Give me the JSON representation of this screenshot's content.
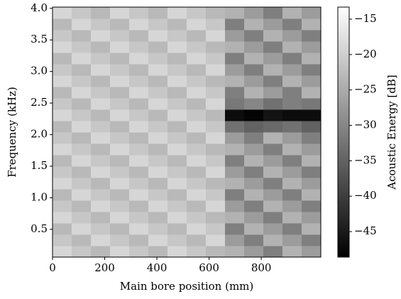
{
  "chart_data": {
    "type": "heatmap",
    "xlabel": "Main bore position (mm)",
    "ylabel": "Frequency (kHz)",
    "colorbar_label": "Acoustic Energy [dB]",
    "colormap": "gray",
    "xlim": [
      0,
      1028
    ],
    "ylim": [
      0.06,
      4.02
    ],
    "xticks": [
      0,
      200,
      400,
      600,
      800
    ],
    "yticks": [
      0.5,
      {
        "value": 1.0,
        "label": "1.0"
      },
      1.5,
      {
        "value": 2.0,
        "label": "2.0"
      },
      2.5,
      {
        "value": 3.0,
        "label": "3.0"
      },
      3.5,
      {
        "value": 4.0,
        "label": "4.0"
      }
    ],
    "clim": [
      -48.6,
      -13.3
    ],
    "cticks": [
      {
        "value": -15,
        "label": "−15"
      },
      {
        "value": -20,
        "label": "−20"
      },
      {
        "value": -25,
        "label": "−25"
      },
      {
        "value": -30,
        "label": "−30"
      },
      {
        "value": -35,
        "label": "−35"
      },
      {
        "value": -40,
        "label": "−40"
      },
      {
        "value": -45,
        "label": "−45"
      }
    ],
    "xbins": [
      0,
      73.4,
      146.9,
      220.3,
      293.7,
      367.1,
      440.6,
      514,
      587.4,
      660.9,
      734.3,
      807.7,
      881.1,
      954.6,
      1028
    ],
    "ybins": [
      0.06,
      0.24,
      0.42,
      0.6,
      0.78,
      0.96,
      1.14,
      1.32,
      1.5,
      1.68,
      1.86,
      2.04,
      2.22,
      2.4,
      2.58,
      2.76,
      2.94,
      3.12,
      3.3,
      3.48,
      3.66,
      3.84,
      4.02
    ],
    "z": [
      [
        -19,
        -21,
        -23,
        -19,
        -21,
        -23,
        -19,
        -21,
        -23,
        -24,
        -27,
        -31,
        -24,
        -27
      ],
      [
        -21,
        -23,
        -19,
        -21,
        -23,
        -19,
        -21,
        -23,
        -19,
        -27,
        -31,
        -24,
        -27,
        -31
      ],
      [
        -23,
        -19,
        -21,
        -23,
        -19,
        -21,
        -23,
        -19,
        -21,
        -31,
        -24,
        -27,
        -31,
        -24
      ],
      [
        -19,
        -21,
        -23,
        -19,
        -21,
        -23,
        -19,
        -21,
        -23,
        -24,
        -27,
        -31,
        -24,
        -27
      ],
      [
        -21,
        -23,
        -19,
        -21,
        -23,
        -19,
        -21,
        -23,
        -19,
        -27,
        -31,
        -24,
        -27,
        -31
      ],
      [
        -23,
        -19,
        -21,
        -23,
        -19,
        -21,
        -23,
        -19,
        -21,
        -31,
        -24,
        -27,
        -31,
        -24
      ],
      [
        -19,
        -21,
        -23,
        -19,
        -21,
        -23,
        -19,
        -21,
        -23,
        -24,
        -27,
        -31,
        -24,
        -27
      ],
      [
        -21,
        -23,
        -19,
        -21,
        -23,
        -19,
        -21,
        -23,
        -19,
        -27,
        -31,
        -24,
        -27,
        -31
      ],
      [
        -23,
        -19,
        -21,
        -23,
        -19,
        -21,
        -23,
        -19,
        -21,
        -31,
        -24,
        -27,
        -31,
        -24
      ],
      [
        -19,
        -21,
        -23,
        -19,
        -21,
        -23,
        -19,
        -21,
        -23,
        -24,
        -27,
        -31,
        -24,
        -27
      ],
      [
        -21,
        -23,
        -19,
        -21,
        -23,
        -19,
        -21,
        -23,
        -19,
        -27,
        -31,
        -24,
        -27,
        -31
      ],
      [
        -23,
        -19,
        -21,
        -23,
        -19,
        -21,
        -23,
        -19,
        -21,
        -33,
        -35,
        -34,
        -33,
        -35
      ],
      [
        -19,
        -21,
        -23,
        -19,
        -21,
        -23,
        -19,
        -21,
        -23,
        -47,
        -48,
        -46,
        -47,
        -47
      ],
      [
        -21,
        -23,
        -19,
        -21,
        -23,
        -19,
        -21,
        -23,
        -19,
        -32,
        -30,
        -33,
        -31,
        -32
      ],
      [
        -23,
        -19,
        -21,
        -23,
        -19,
        -21,
        -23,
        -19,
        -21,
        -31,
        -24,
        -27,
        -31,
        -24
      ],
      [
        -19,
        -21,
        -23,
        -19,
        -21,
        -23,
        -19,
        -21,
        -23,
        -24,
        -27,
        -31,
        -24,
        -27
      ],
      [
        -21,
        -23,
        -19,
        -21,
        -23,
        -19,
        -21,
        -23,
        -19,
        -27,
        -31,
        -24,
        -27,
        -31
      ],
      [
        -23,
        -19,
        -21,
        -23,
        -19,
        -21,
        -23,
        -19,
        -21,
        -31,
        -24,
        -27,
        -31,
        -24
      ],
      [
        -19,
        -21,
        -23,
        -19,
        -21,
        -23,
        -19,
        -21,
        -23,
        -24,
        -27,
        -31,
        -24,
        -27
      ],
      [
        -21,
        -23,
        -19,
        -21,
        -23,
        -19,
        -21,
        -23,
        -19,
        -27,
        -31,
        -24,
        -27,
        -31
      ],
      [
        -23,
        -19,
        -21,
        -23,
        -19,
        -21,
        -23,
        -19,
        -21,
        -31,
        -24,
        -27,
        -31,
        -24
      ],
      [
        -19,
        -21,
        -23,
        -19,
        -21,
        -23,
        -19,
        -21,
        -23,
        -24,
        -27,
        -31,
        -24,
        -27
      ]
    ]
  }
}
